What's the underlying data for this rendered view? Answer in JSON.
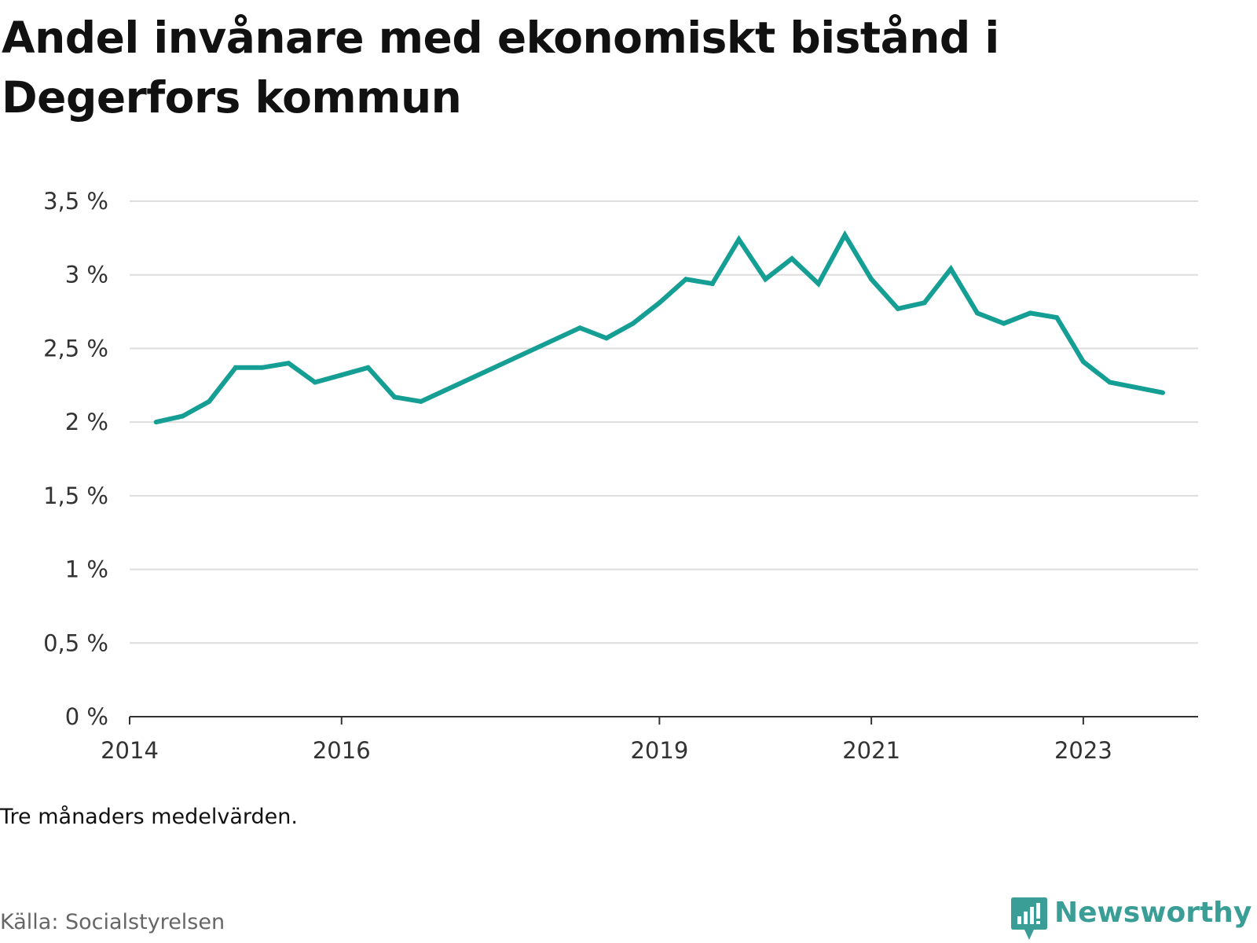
{
  "title": "Andel invånare med ekonomiskt bistånd i Degerfors kommun",
  "note": "Tre månaders medelvärden.",
  "source": "Källa: Socialstyrelsen",
  "brand": {
    "name": "Newsworthy",
    "icon": "newsworthy-logo-icon",
    "color": "#3a9e97"
  },
  "chart_data": {
    "type": "line",
    "title": "Andel invånare med ekonomiskt bistånd i Degerfors kommun",
    "xlabel": "",
    "ylabel": "",
    "x_ticks": [
      "2014",
      "2016",
      "2019",
      "2021",
      "2023"
    ],
    "y_ticks": [
      "0 %",
      "0,5 %",
      "1 %",
      "1,5 %",
      "2 %",
      "2,5 %",
      "3 %",
      "3,5 %"
    ],
    "ylim": [
      0,
      3.5
    ],
    "xlim": [
      "2014-01",
      "2024-02"
    ],
    "grid": true,
    "line_color": "#159e94",
    "series": [
      {
        "x": [
          "2014-04",
          "2014-07",
          "2014-10",
          "2015-01",
          "2015-04",
          "2015-07",
          "2015-10",
          "2016-01",
          "2016-04",
          "2016-07",
          "2016-10",
          "2018-04",
          "2018-07",
          "2018-10",
          "2019-01",
          "2019-04",
          "2019-07",
          "2019-10",
          "2020-01",
          "2020-04",
          "2020-07",
          "2020-10",
          "2021-01",
          "2021-04",
          "2021-07",
          "2021-10",
          "2022-01",
          "2022-04",
          "2022-07",
          "2022-10",
          "2023-01",
          "2023-04",
          "2023-10"
        ],
        "values": [
          2.0,
          2.04,
          2.14,
          2.37,
          2.37,
          2.4,
          2.27,
          2.32,
          2.37,
          2.17,
          2.14,
          2.64,
          2.57,
          2.67,
          2.81,
          2.97,
          2.94,
          3.24,
          2.97,
          3.11,
          2.94,
          3.27,
          2.97,
          2.77,
          2.81,
          3.04,
          2.74,
          2.67,
          2.74,
          2.71,
          2.41,
          2.27,
          2.2
        ]
      }
    ]
  }
}
